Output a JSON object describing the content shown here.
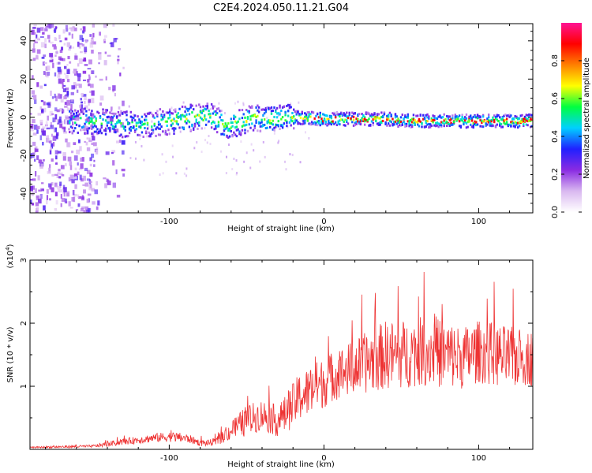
{
  "title": "C2E4.2024.050.11.21.G04",
  "chart_data": [
    {
      "type": "heatmap",
      "title": "C2E4.2024.050.11.21.G04",
      "xlabel": "Height of straight line (km)",
      "ylabel": "Frequency (Hz)",
      "xlim": [
        -190,
        135
      ],
      "ylim": [
        -50,
        49
      ],
      "xticks": [
        -100,
        0,
        100
      ],
      "yticks": [
        -40,
        -20,
        0,
        20,
        40
      ],
      "colorbar": {
        "label": "Normalized spectral amplitude",
        "range": [
          0.0,
          1.0
        ],
        "ticks": [
          0.0,
          0.2,
          0.4,
          0.6,
          0.8
        ],
        "tick_labels": [
          "0.0",
          "0.2",
          "0.4",
          "0.6",
          "0.8"
        ],
        "colormap": [
          "#ffffff",
          "#d9b8f0",
          "#8a2be2",
          "#2020ff",
          "#00d0ff",
          "#00ff40",
          "#ffff00",
          "#ff8000",
          "#ff0000",
          "#ff1493"
        ]
      },
      "ridge": {
        "description": "narrow band near 0 Hz",
        "center_hz": [
          [
            -155,
            -2
          ],
          [
            -140,
            -3
          ],
          [
            -120,
            -4
          ],
          [
            -100,
            -2
          ],
          [
            -85,
            0
          ],
          [
            -75,
            1
          ],
          [
            -65,
            -4
          ],
          [
            -55,
            -3
          ],
          [
            -45,
            0
          ],
          [
            -35,
            -1
          ],
          [
            -20,
            0
          ],
          [
            0,
            -1
          ],
          [
            20,
            -1
          ],
          [
            40,
            -1
          ],
          [
            60,
            -2
          ],
          [
            80,
            -2
          ],
          [
            100,
            -2
          ],
          [
            120,
            -2
          ],
          [
            135,
            -2
          ]
        ],
        "peak_amplitude": 0.9
      }
    },
    {
      "type": "line",
      "xlabel": "Height of straight line (km)",
      "ylabel": "SNR (10 * v/v)",
      "yscale_label": "(x10",
      "yscale_exp": "4",
      "yscale_close": ")",
      "xlim": [
        -190,
        135
      ],
      "ylim": [
        0,
        3
      ],
      "xticks": [
        -100,
        0,
        100
      ],
      "yticks": [
        1,
        2,
        3
      ],
      "color": "#ee3333",
      "series": [
        {
          "name": "SNR",
          "x": [
            -190,
            -170,
            -150,
            -140,
            -130,
            -120,
            -110,
            -100,
            -90,
            -85,
            -80,
            -75,
            -70,
            -65,
            -60,
            -55,
            -50,
            -45,
            -40,
            -35,
            -30,
            -25,
            -20,
            -15,
            -10,
            -5,
            0,
            5,
            10,
            20,
            30,
            40,
            50,
            60,
            70,
            80,
            90,
            100,
            110,
            120,
            130,
            135
          ],
          "values": [
            0.03,
            0.04,
            0.05,
            0.08,
            0.12,
            0.15,
            0.18,
            0.2,
            0.18,
            0.15,
            0.1,
            0.1,
            0.12,
            0.2,
            0.3,
            0.38,
            0.45,
            0.5,
            0.55,
            0.5,
            0.45,
            0.55,
            0.7,
            0.85,
            0.9,
            1.0,
            1.05,
            1.15,
            1.2,
            1.3,
            1.4,
            1.5,
            1.5,
            1.55,
            1.55,
            1.5,
            1.45,
            1.55,
            1.5,
            1.45,
            1.45,
            1.45
          ],
          "amplitude": [
            0.01,
            0.02,
            0.02,
            0.04,
            0.05,
            0.06,
            0.07,
            0.08,
            0.08,
            0.06,
            0.05,
            0.05,
            0.06,
            0.1,
            0.15,
            0.2,
            0.25,
            0.25,
            0.25,
            0.25,
            0.25,
            0.3,
            0.35,
            0.4,
            0.4,
            0.4,
            0.4,
            0.4,
            0.4,
            0.45,
            0.5,
            0.55,
            0.55,
            0.55,
            0.55,
            0.55,
            0.5,
            0.5,
            0.5,
            0.5,
            0.45,
            0.45
          ]
        }
      ]
    }
  ]
}
